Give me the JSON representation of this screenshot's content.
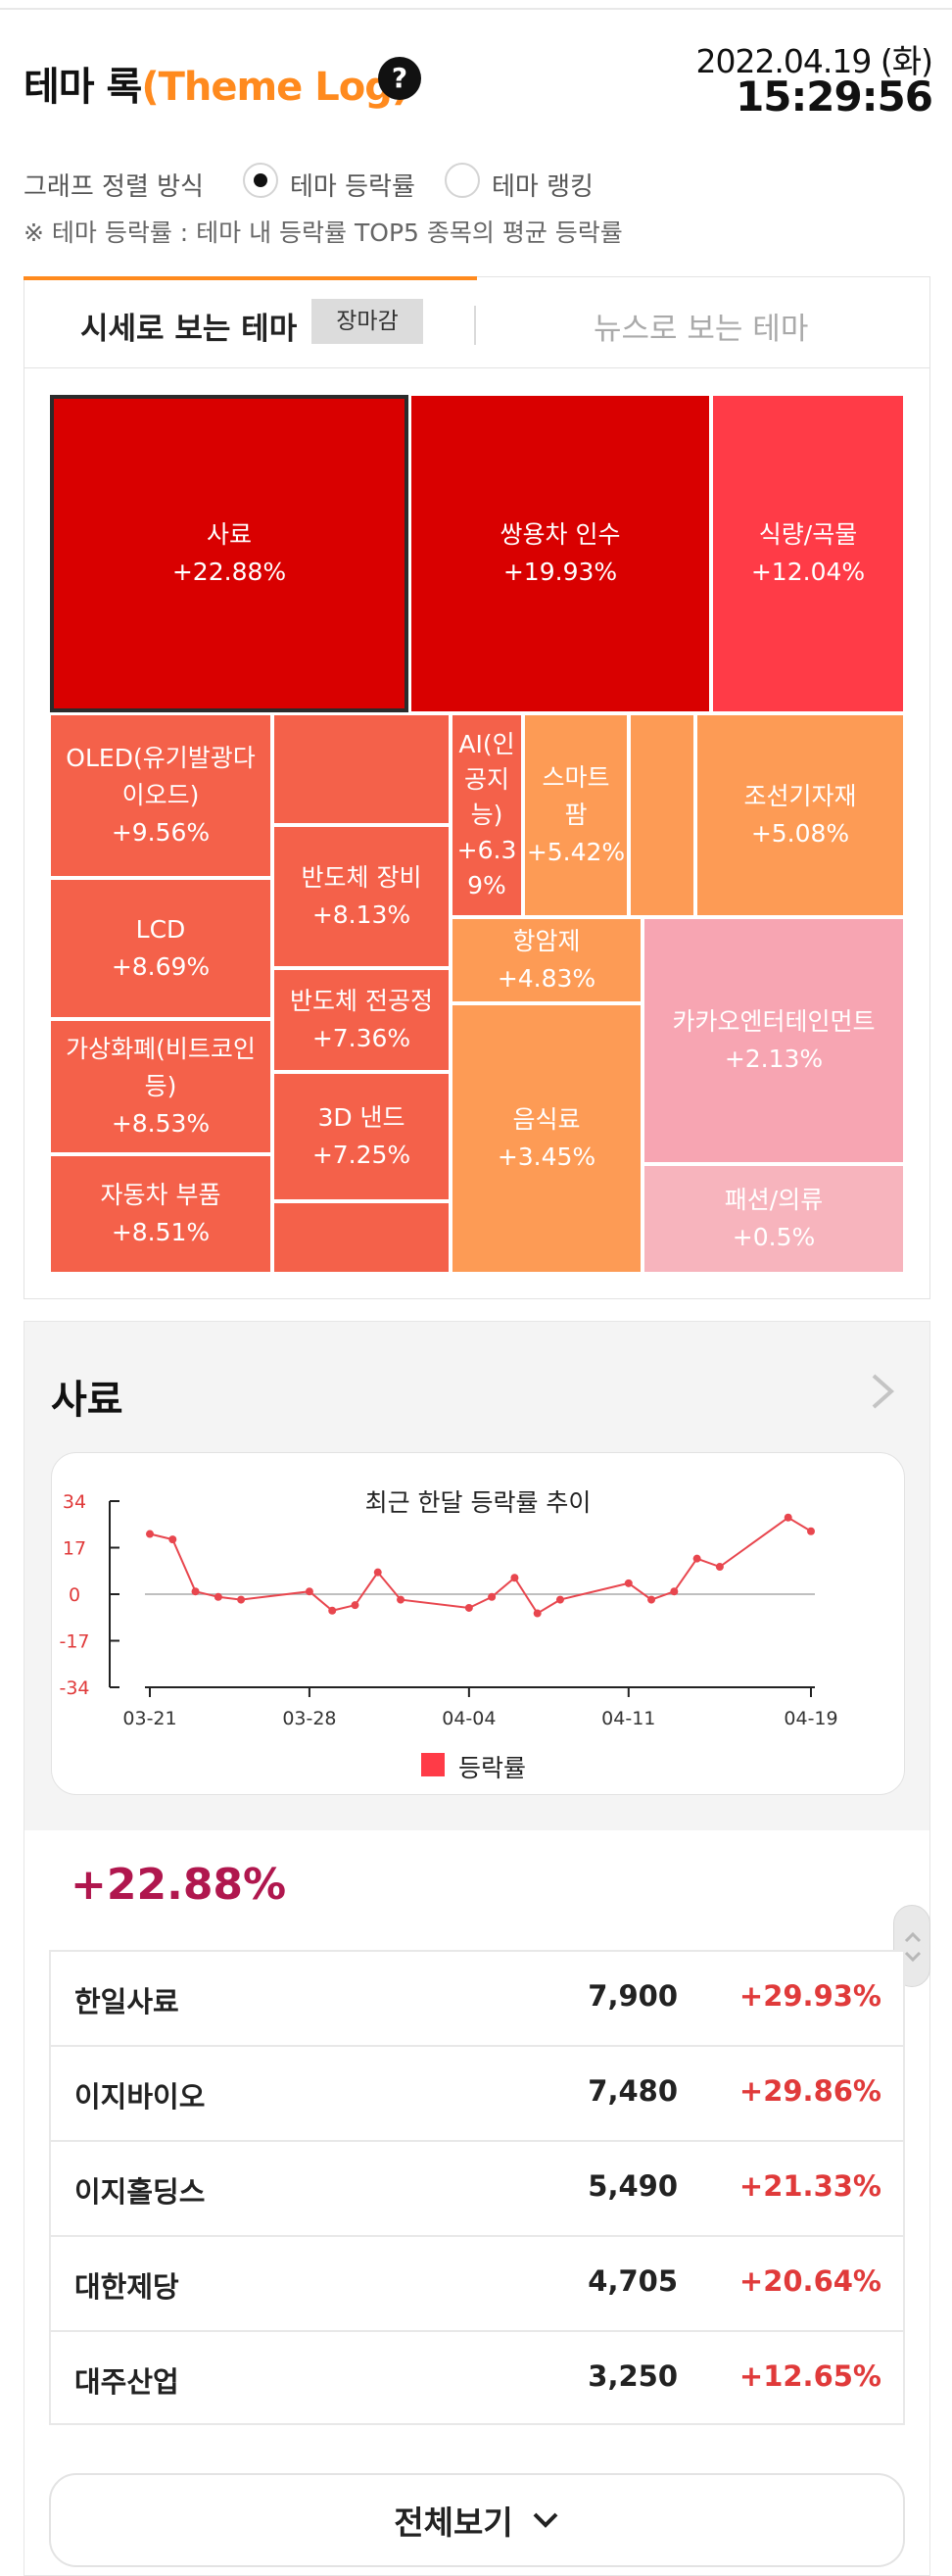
{
  "header": {
    "title_ko": "테마 록",
    "title_en": "(Theme Log)",
    "help_glyph": "?",
    "date": "2022.04.19 (화)",
    "time": "15:29:56"
  },
  "sort": {
    "label": "그래프 정렬 방식",
    "options": [
      {
        "label": "테마 등락률",
        "selected": true
      },
      {
        "label": "테마 랭킹",
        "selected": false
      }
    ],
    "note": "※ 테마 등락률 : 테마 내 등락률 TOP5 종목의 평균 등락률"
  },
  "tabs": {
    "active": "시세로 보는 테마",
    "badge": "장마감",
    "inactive": "뉴스로 보는 테마"
  },
  "treemap": [
    {
      "name": "사료",
      "pct": "+22.88%"
    },
    {
      "name": "쌍용차 인수",
      "pct": "+19.93%"
    },
    {
      "name": "식량/곡물",
      "pct": "+12.04%"
    },
    {
      "name": "OLED(유기발광다 이오드)",
      "pct": "+9.56%"
    },
    {
      "name": "LCD",
      "pct": "+8.69%"
    },
    {
      "name": "가상화폐(비트코인 등)",
      "pct": "+8.53%"
    },
    {
      "name": "자동차 부품",
      "pct": "+8.51%"
    },
    {
      "name": "반도체 장비",
      "pct": "+8.13%"
    },
    {
      "name": "반도체 전공정",
      "pct": "+7.36%"
    },
    {
      "name": "3D 낸드",
      "pct": "+7.25%"
    },
    {
      "name": "AI(인 공지 능)",
      "pct": "+6.3 9%"
    },
    {
      "name": "스마트 팜",
      "pct": "+5.42%"
    },
    {
      "name": "조선기자재",
      "pct": "+5.08%"
    },
    {
      "name": "항암제",
      "pct": "+4.83%"
    },
    {
      "name": "음식료",
      "pct": "+3.45%"
    },
    {
      "name": "카카오엔터테인먼트",
      "pct": "+2.13%"
    },
    {
      "name": "패션/의류",
      "pct": "+0.5%"
    }
  ],
  "detail": {
    "theme": "사료",
    "chart_title": "최근 한달 등락률 추이",
    "legend": "등락률",
    "avg_change": "+22.88%",
    "more_button": "전체보기",
    "stocks": [
      {
        "name": "한일사료",
        "price": "7,900",
        "change": "+29.93%"
      },
      {
        "name": "이지바이오",
        "price": "7,480",
        "change": "+29.86%"
      },
      {
        "name": "이지홀딩스",
        "price": "5,490",
        "change": "+21.33%"
      },
      {
        "name": "대한제당",
        "price": "4,705",
        "change": "+20.64%"
      },
      {
        "name": "대주산업",
        "price": "3,250",
        "change": "+12.65%"
      }
    ]
  },
  "colors": {
    "accent_orange": "#ff8a1e",
    "series_red": "#ff3b47",
    "avg_text": "#b0174e",
    "change_red": "#e03a3a"
  },
  "chart_data": {
    "type": "line",
    "title": "최근 한달 등락률 추이",
    "xlabel": "",
    "ylabel": "",
    "ylim": [
      -34,
      34
    ],
    "yticks": [
      "34",
      "17",
      "0",
      "-17",
      "-34"
    ],
    "xticks": [
      "03-21",
      "03-28",
      "04-04",
      "04-11",
      "04-19"
    ],
    "series": [
      {
        "name": "등락률",
        "points": [
          [
            "03-21",
            22
          ],
          [
            "03-22",
            20
          ],
          [
            "03-23",
            1
          ],
          [
            "03-24",
            -1
          ],
          [
            "03-25",
            -2
          ],
          [
            "03-28",
            1
          ],
          [
            "03-29",
            -6
          ],
          [
            "03-30",
            -4
          ],
          [
            "03-31",
            8
          ],
          [
            "04-01",
            -2
          ],
          [
            "04-04",
            -5
          ],
          [
            "04-05",
            -1
          ],
          [
            "04-06",
            6
          ],
          [
            "04-07",
            -7
          ],
          [
            "04-08",
            -2
          ],
          [
            "04-11",
            4
          ],
          [
            "04-12",
            -2
          ],
          [
            "04-13",
            1
          ],
          [
            "04-14",
            13
          ],
          [
            "04-15",
            10
          ],
          [
            "04-18",
            28
          ],
          [
            "04-19",
            23
          ]
        ]
      }
    ]
  }
}
